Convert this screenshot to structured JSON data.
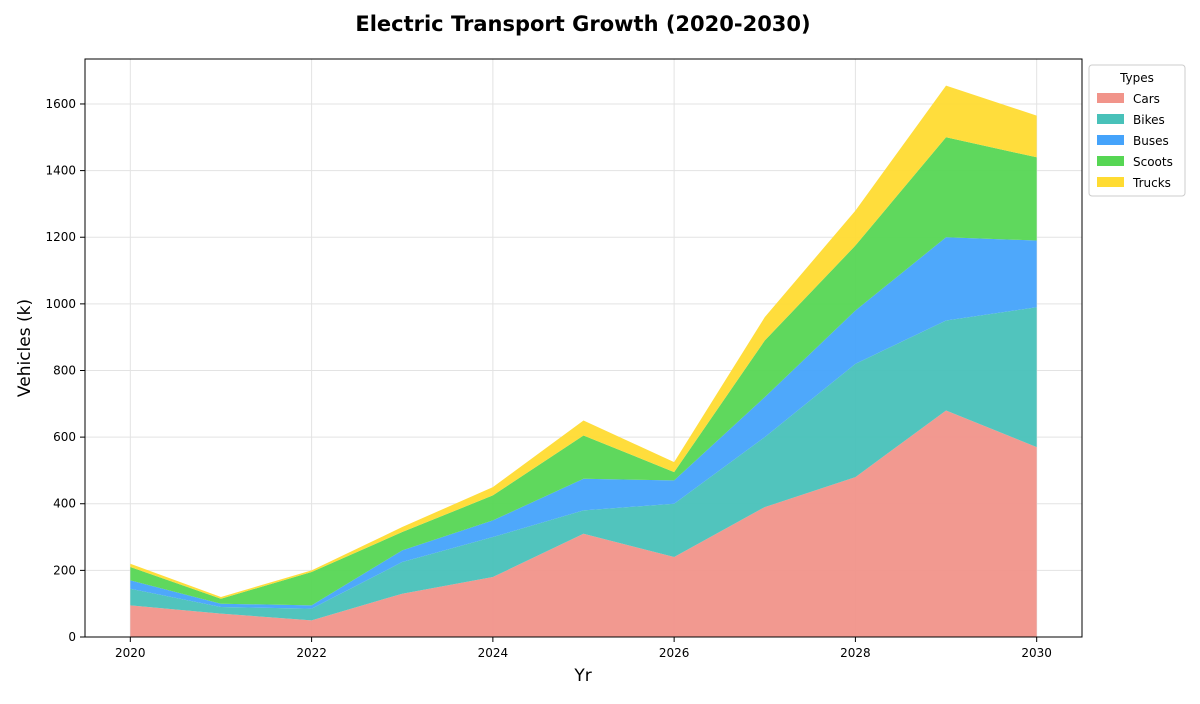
{
  "chart_data": {
    "type": "area",
    "stacked": true,
    "title": "Electric Transport Growth (2020-2030)",
    "xlabel": "Yr",
    "ylabel": "Vehicles (k)",
    "x": [
      2020,
      2021,
      2022,
      2023,
      2024,
      2025,
      2026,
      2027,
      2028,
      2029,
      2030
    ],
    "xticks": [
      2020,
      2022,
      2024,
      2026,
      2028,
      2030
    ],
    "yticks": [
      0,
      200,
      400,
      600,
      800,
      1000,
      1200,
      1400,
      1600
    ],
    "xlim": [
      2019.5,
      2030.5
    ],
    "ylim": [
      0,
      1735
    ],
    "grid": true,
    "legend": {
      "title": "Types",
      "placement": "outside-top-right"
    },
    "series": [
      {
        "name": "Cars",
        "color": "#f1948a",
        "values": [
          95,
          70,
          50,
          130,
          180,
          310,
          240,
          390,
          480,
          680,
          570
        ]
      },
      {
        "name": "Bikes",
        "color": "#48c1b9",
        "values": [
          50,
          20,
          35,
          95,
          120,
          70,
          160,
          210,
          340,
          270,
          420
        ]
      },
      {
        "name": "Buses",
        "color": "#45a3fb",
        "values": [
          25,
          10,
          10,
          35,
          50,
          95,
          70,
          120,
          160,
          250,
          200
        ]
      },
      {
        "name": "Scoots",
        "color": "#56d654",
        "values": [
          40,
          15,
          100,
          55,
          75,
          130,
          25,
          170,
          195,
          300,
          250
        ]
      },
      {
        "name": "Trucks",
        "color": "#ffdb32",
        "values": [
          10,
          5,
          5,
          15,
          25,
          45,
          30,
          70,
          105,
          155,
          125
        ]
      }
    ]
  }
}
